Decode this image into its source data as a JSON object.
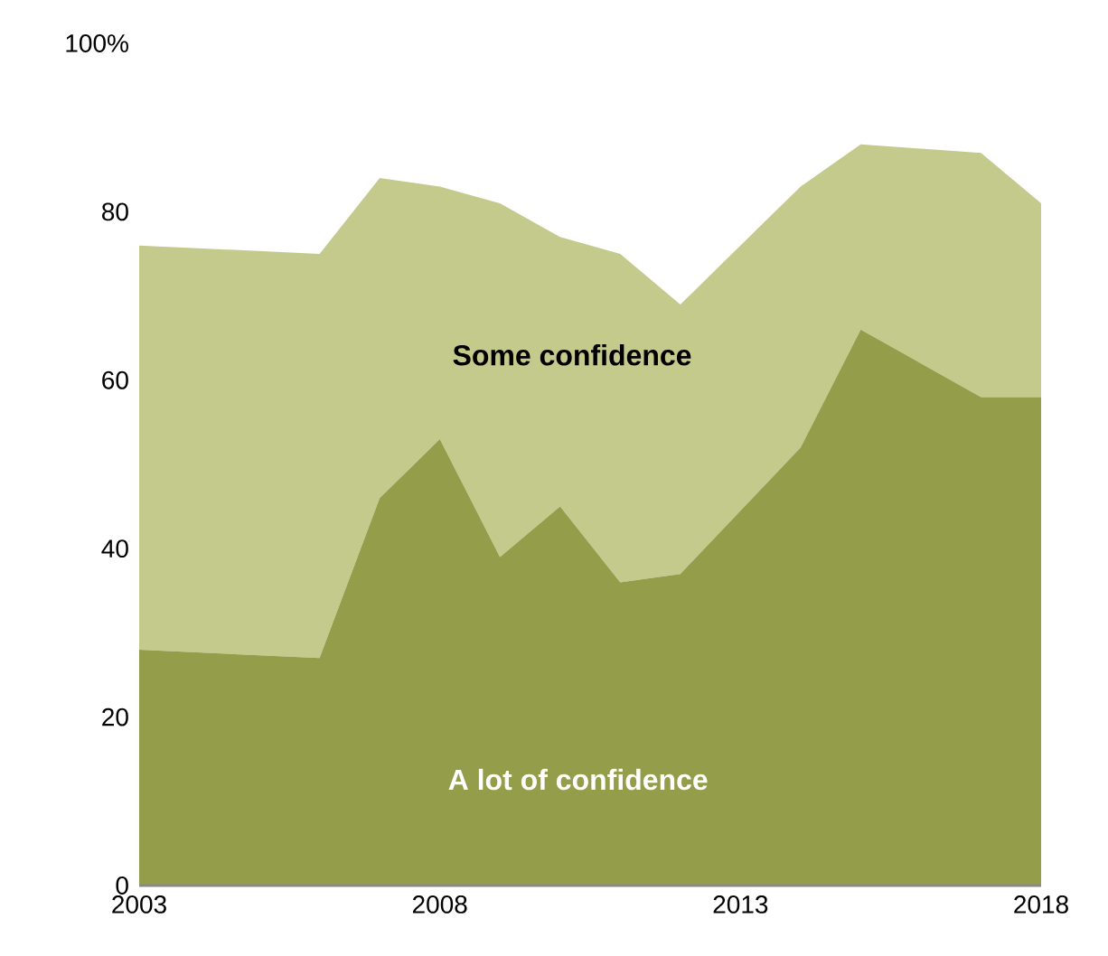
{
  "chart_data": {
    "type": "area",
    "stacked": true,
    "legend": false,
    "grid": false,
    "x": [
      2003,
      2006,
      2007,
      2008,
      2009,
      2010,
      2011,
      2012,
      2014,
      2015,
      2017,
      2018
    ],
    "series": [
      {
        "name": "A lot of confidence",
        "color": "#949d4a",
        "values": [
          28,
          27,
          46,
          53,
          39,
          45,
          36,
          37,
          52,
          66,
          58,
          58
        ]
      },
      {
        "name": "Some confidence",
        "color": "#c4c98c",
        "values": [
          48,
          48,
          38,
          30,
          42,
          32,
          39,
          32,
          31,
          22,
          29,
          23
        ]
      }
    ],
    "xlim": [
      2003,
      2018
    ],
    "xticks": [
      2003,
      2008,
      2013,
      2018
    ],
    "ylim": [
      0,
      100
    ],
    "yticks": [
      0,
      20,
      40,
      60,
      {
        "value": 80,
        "label": "80"
      },
      {
        "value": 100,
        "label": "100%"
      }
    ]
  }
}
